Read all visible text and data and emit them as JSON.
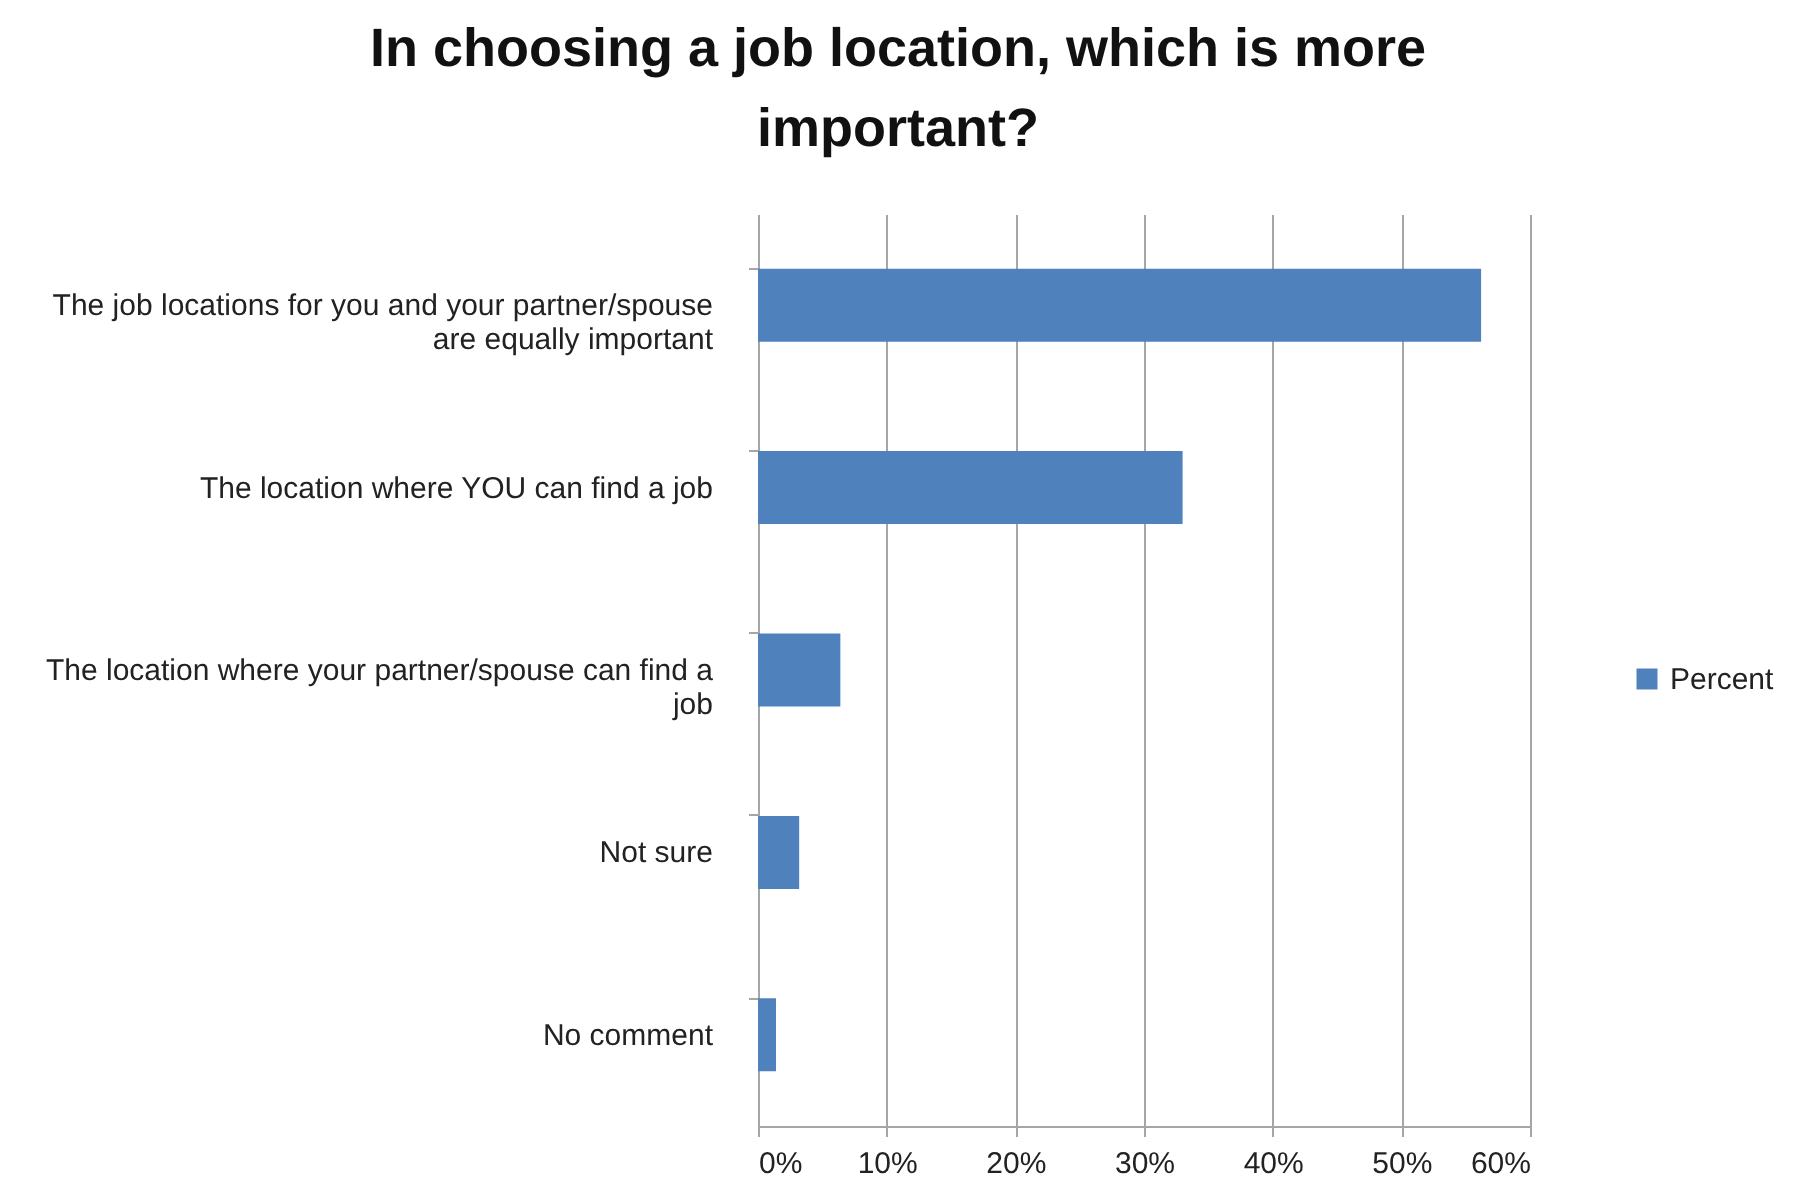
{
  "chart_data": {
    "type": "bar",
    "orientation": "horizontal",
    "title": "In choosing a job location, which is more important?",
    "categories": [
      "The job locations for you and your partner/spouse are equally important",
      "The location where YOU can find a job",
      "The location where your partner/spouse can find a job",
      "Not sure",
      "No comment"
    ],
    "series": [
      {
        "name": "Percent",
        "color": "#4f81bd",
        "values": [
          56.2,
          33.0,
          6.4,
          3.2,
          1.4
        ]
      }
    ],
    "xlim": [
      0,
      60
    ],
    "xticks": [
      {
        "value": 0,
        "label": "0%"
      },
      {
        "value": 10,
        "label": "10%"
      },
      {
        "value": 20,
        "label": "20%"
      },
      {
        "value": 30,
        "label": "30%"
      },
      {
        "value": 40,
        "label": "40%"
      },
      {
        "value": 50,
        "label": "50%"
      },
      {
        "value": 60,
        "label": "60%"
      }
    ],
    "grid": "x",
    "legend": "right"
  }
}
